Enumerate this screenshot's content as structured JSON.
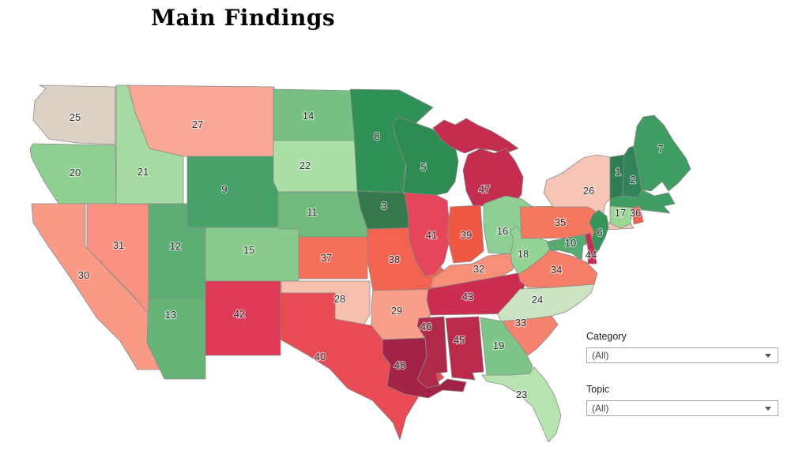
{
  "title": "Main Findings",
  "filters": {
    "category": {
      "label": "Category",
      "value": "(All)"
    },
    "topic": {
      "label": "Topic",
      "value": "(All)"
    }
  },
  "map_style": {
    "border_color": "#8a8a8a",
    "background": "#ffffff",
    "label_color": "#333333"
  },
  "chart_data": {
    "type": "heatmap",
    "subtype": "choropleth-us-states",
    "title": "Main Findings",
    "geography": "United States, contiguous 48 states",
    "value_name": "State rank (number printed on each state)",
    "value_range": [
      1,
      48
    ],
    "legend": "none shown",
    "palette": {
      "description": "red-green diverging: rank 1 dark green, ~25 neutral beige, 48 dark red",
      "low": "#2f7e51",
      "mid": "#dbd1c5",
      "high": "#a32347"
    },
    "notes": "Rank 4 label is not visible anywhere on the map; Massachusetts is filled green but shows no number (label occluded by CT/RI labels).",
    "states": [
      {
        "abbr": "VT",
        "name": "Vermont",
        "rank": 1,
        "color": "#2f7e51"
      },
      {
        "abbr": "NH",
        "name": "New Hampshire",
        "rank": 2,
        "color": "#31835a"
      },
      {
        "abbr": "IA",
        "name": "Iowa",
        "rank": 3,
        "color": "#35794d"
      },
      {
        "abbr": "WI",
        "name": "Wisconsin",
        "rank": 5,
        "color": "#2e8b51"
      },
      {
        "abbr": "NJ",
        "name": "New Jersey",
        "rank": 6,
        "color": "#37945b"
      },
      {
        "abbr": "ME",
        "name": "Maine",
        "rank": 7,
        "color": "#3f9c63"
      },
      {
        "abbr": "MN",
        "name": "Minnesota",
        "rank": 8,
        "color": "#2f9155"
      },
      {
        "abbr": "WY",
        "name": "Wyoming",
        "rank": 9,
        "color": "#46a167"
      },
      {
        "abbr": "MD",
        "name": "Maryland",
        "rank": 10,
        "color": "#56aa70"
      },
      {
        "abbr": "NE",
        "name": "Nebraska",
        "rank": 11,
        "color": "#70ba7d"
      },
      {
        "abbr": "UT",
        "name": "Utah",
        "rank": 12,
        "color": "#5ead74"
      },
      {
        "abbr": "AZ",
        "name": "Arizona",
        "rank": 13,
        "color": "#67b478"
      },
      {
        "abbr": "ND",
        "name": "North Dakota",
        "rank": 14,
        "color": "#77c083"
      },
      {
        "abbr": "CO",
        "name": "Colorado",
        "rank": 15,
        "color": "#87ca8c"
      },
      {
        "abbr": "OH",
        "name": "Ohio",
        "rank": 16,
        "color": "#8ed094"
      },
      {
        "abbr": "CT",
        "name": "Connecticut",
        "rank": 17,
        "color": "#9ad795"
      },
      {
        "abbr": "WV",
        "name": "West Virginia",
        "rank": 18,
        "color": "#93d494"
      },
      {
        "abbr": "GA",
        "name": "Georgia",
        "rank": 19,
        "color": "#7dc589"
      },
      {
        "abbr": "OR",
        "name": "Oregon",
        "rank": 20,
        "color": "#8fd191"
      },
      {
        "abbr": "ID",
        "name": "Idaho",
        "rank": 21,
        "color": "#a5dba2"
      },
      {
        "abbr": "SD",
        "name": "South Dakota",
        "rank": 22,
        "color": "#aadfa6"
      },
      {
        "abbr": "FL",
        "name": "Florida",
        "rank": 23,
        "color": "#b7e3b0"
      },
      {
        "abbr": "NC",
        "name": "North Carolina",
        "rank": 24,
        "color": "#cde4c2"
      },
      {
        "abbr": "WA",
        "name": "Washington",
        "rank": 25,
        "color": "#dbd1c5"
      },
      {
        "abbr": "NY",
        "name": "New York",
        "rank": 26,
        "color": "#f7c5b5"
      },
      {
        "abbr": "MT",
        "name": "Montana",
        "rank": 27,
        "color": "#f8a795"
      },
      {
        "abbr": "OK",
        "name": "Oklahoma",
        "rank": 28,
        "color": "#f7bfae"
      },
      {
        "abbr": "AR",
        "name": "Arkansas",
        "rank": 29,
        "color": "#f89e8b"
      },
      {
        "abbr": "CA",
        "name": "California",
        "rank": 30,
        "color": "#f89a86"
      },
      {
        "abbr": "NV",
        "name": "Nevada",
        "rank": 31,
        "color": "#f89181"
      },
      {
        "abbr": "KY",
        "name": "Kentucky",
        "rank": 32,
        "color": "#f79079"
      },
      {
        "abbr": "SC",
        "name": "South Carolina",
        "rank": 33,
        "color": "#f5836e"
      },
      {
        "abbr": "VA",
        "name": "Virginia",
        "rank": 34,
        "color": "#f57e68"
      },
      {
        "abbr": "PA",
        "name": "Pennsylvania",
        "rank": 35,
        "color": "#f4785f"
      },
      {
        "abbr": "RI",
        "name": "Rhode Island",
        "rank": 36,
        "color": "#f26450"
      },
      {
        "abbr": "KS",
        "name": "Kansas",
        "rank": 37,
        "color": "#f4705b"
      },
      {
        "abbr": "MO",
        "name": "Missouri",
        "rank": 38,
        "color": "#f26350"
      },
      {
        "abbr": "IN",
        "name": "Indiana",
        "rank": 39,
        "color": "#ef5944"
      },
      {
        "abbr": "TX",
        "name": "Texas",
        "rank": 40,
        "color": "#e94b55"
      },
      {
        "abbr": "IL",
        "name": "Illinois",
        "rank": 41,
        "color": "#e5455a"
      },
      {
        "abbr": "NM",
        "name": "New Mexico",
        "rank": 42,
        "color": "#de3a55"
      },
      {
        "abbr": "TN",
        "name": "Tennessee",
        "rank": 43,
        "color": "#cb2e50"
      },
      {
        "abbr": "DE",
        "name": "Delaware",
        "rank": 44,
        "color": "#c62b50"
      },
      {
        "abbr": "AL",
        "name": "Alabama",
        "rank": 45,
        "color": "#bb2a4b"
      },
      {
        "abbr": "MS",
        "name": "Mississippi",
        "rank": 46,
        "color": "#b12949"
      },
      {
        "abbr": "MI",
        "name": "Michigan",
        "rank": 47,
        "color": "#c42c50"
      },
      {
        "abbr": "LA",
        "name": "Louisiana",
        "rank": 48,
        "color": "#a32347"
      },
      {
        "abbr": "MA",
        "name": "Massachusetts",
        "rank": null,
        "color": "#3f9c63"
      }
    ]
  }
}
